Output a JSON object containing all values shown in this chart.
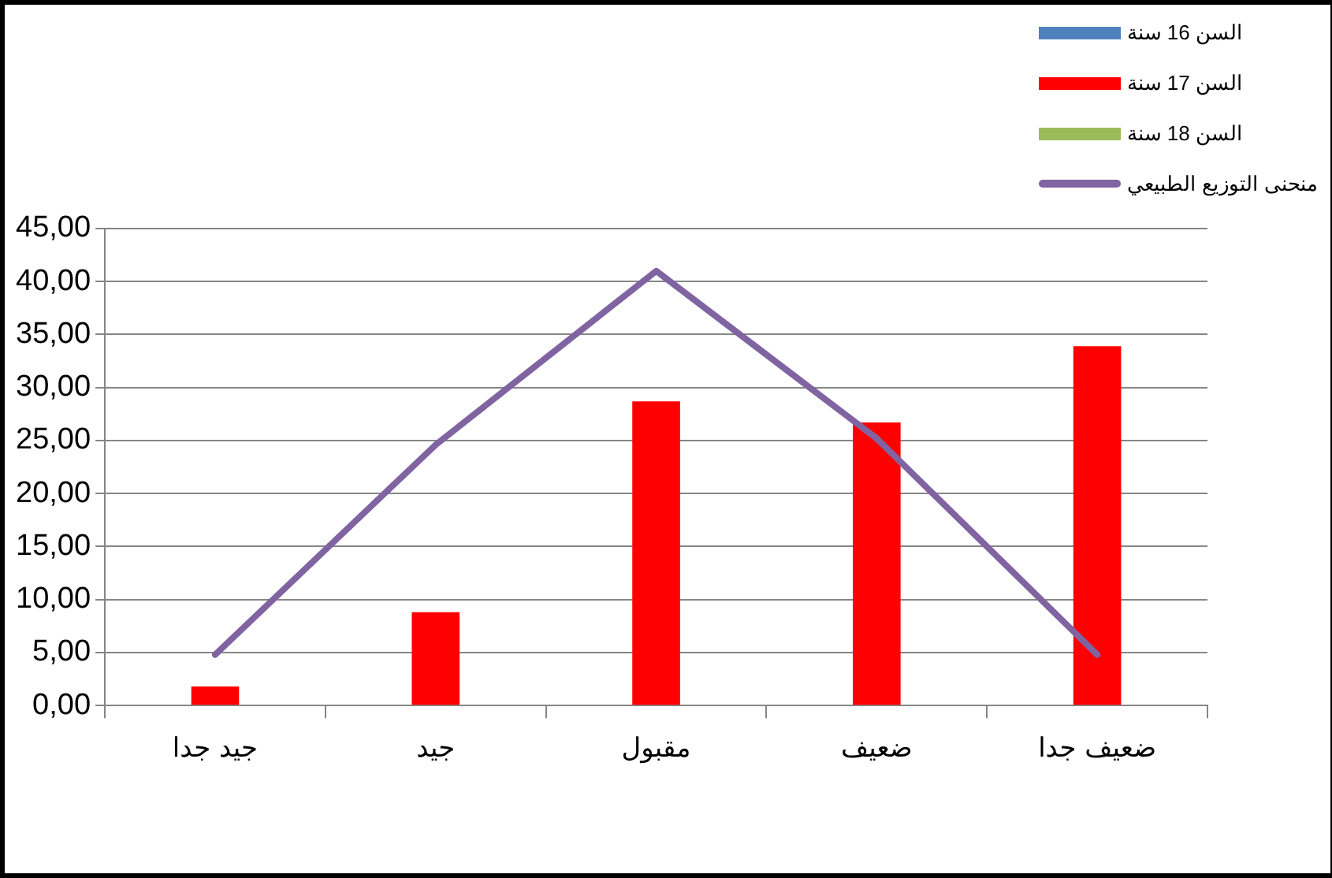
{
  "chart_data": {
    "type": "bar",
    "categories": [
      "جيد جدا",
      "جيد",
      "مقبول",
      "ضعيف",
      "ضعيف جدا"
    ],
    "series": [
      {
        "name": "السن 16 سنة",
        "color": "#4f81bd",
        "values": [
          null,
          null,
          null,
          null,
          null
        ]
      },
      {
        "name": "السن 17 سنة",
        "color": "#ff0000",
        "values": [
          1.8,
          8.8,
          28.7,
          26.7,
          33.9
        ]
      },
      {
        "name": "السن 18 سنة",
        "color": "#9bbb59",
        "values": [
          null,
          null,
          null,
          null,
          null
        ]
      },
      {
        "name": "منحنى التوزيع الطبيعي",
        "type": "line",
        "color": "#8064a2",
        "values": [
          4.8,
          24.6,
          41.0,
          25.2,
          4.8
        ]
      }
    ],
    "ylim": [
      0,
      45
    ],
    "yticks": [
      {
        "value": 0,
        "label": "0,00"
      },
      {
        "value": 5,
        "label": "5,00"
      },
      {
        "value": 10,
        "label": "10,00"
      },
      {
        "value": 15,
        "label": "15,00"
      },
      {
        "value": 20,
        "label": "20,00"
      },
      {
        "value": 25,
        "label": "25,00"
      },
      {
        "value": 30,
        "label": "30,00"
      },
      {
        "value": 35,
        "label": "35,00"
      },
      {
        "value": 40,
        "label": "40,00"
      },
      {
        "value": 45,
        "label": "45,00"
      }
    ],
    "grid": "y",
    "legend": "top right",
    "marker": "none",
    "line_style": "solid"
  }
}
